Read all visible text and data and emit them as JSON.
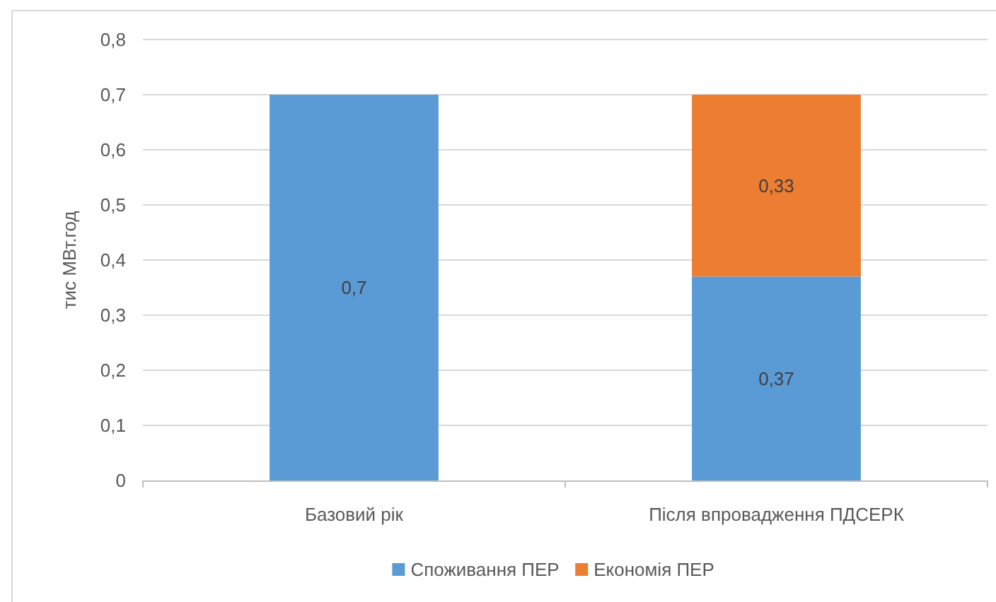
{
  "chart_data": {
    "type": "bar",
    "stacked": true,
    "ylabel": "тис МВт.год",
    "categories": [
      "Базовий рік",
      "Після впровадження ПДСЕРК"
    ],
    "series": [
      {
        "name": "Споживання ПЕР",
        "color": "#5b9bd5",
        "values": [
          0.7,
          0.37
        ],
        "value_labels": [
          "0,7",
          "0,37"
        ]
      },
      {
        "name": "Економія ПЕР",
        "color": "#ed7d31",
        "values": [
          null,
          0.33
        ],
        "value_labels": [
          null,
          "0,33"
        ]
      }
    ],
    "ylim": [
      0,
      0.8
    ],
    "yticks": [
      0,
      {
        "value": 0.1,
        "label": "0,1"
      },
      {
        "value": 0.2,
        "label": "0,2"
      },
      {
        "value": 0.3,
        "label": "0,3"
      },
      {
        "value": 0.4,
        "label": "0,4"
      },
      {
        "value": 0.5,
        "label": "0,5"
      },
      {
        "value": 0.6,
        "label": "0,6"
      },
      {
        "value": 0.7,
        "label": "0,7"
      },
      {
        "value": 0.8,
        "label": "0,8"
      }
    ],
    "grid": "y",
    "legend": "bottom"
  }
}
